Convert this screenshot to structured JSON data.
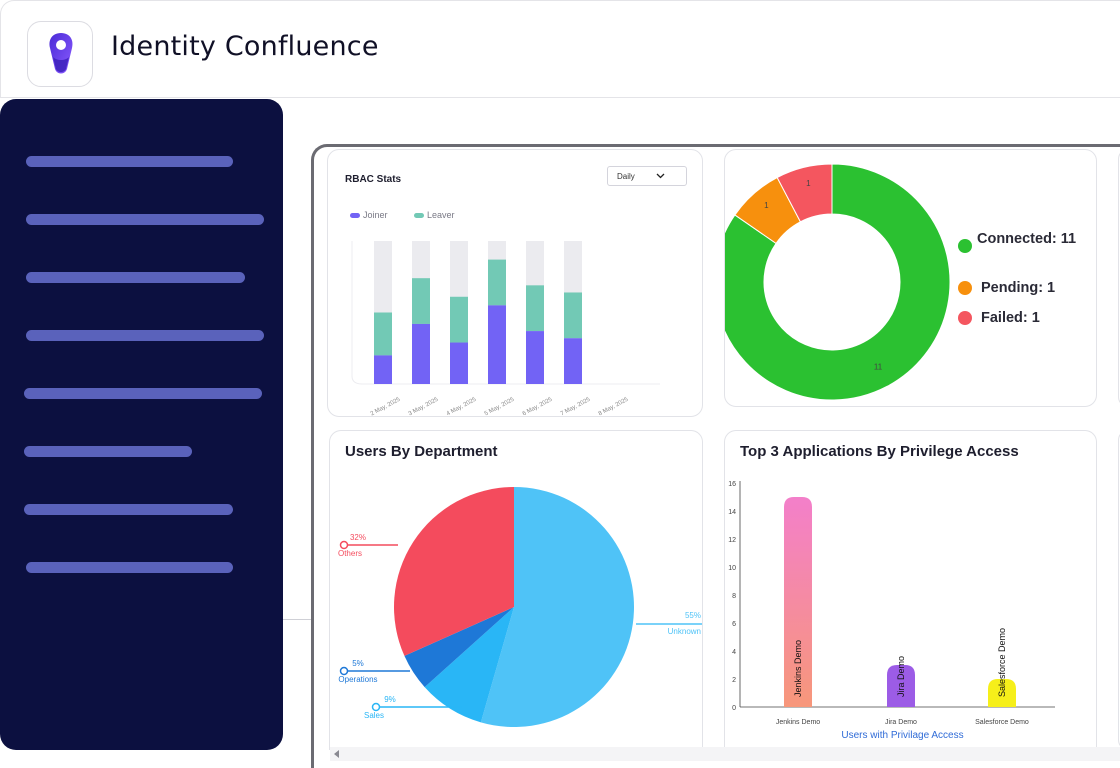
{
  "app": {
    "title": "Identity Confluence"
  },
  "sidebar": {
    "item_count": 8
  },
  "rbac": {
    "title": "RBAC Stats",
    "period": "Daily",
    "legend": [
      {
        "name": "Joiner",
        "color": "#7263f5"
      },
      {
        "name": "Leaver",
        "color": "#72c9b5"
      }
    ]
  },
  "connectors": {
    "legend": [
      {
        "label": "Connected: 11",
        "color": "#2bc131"
      },
      {
        "label": "Pending: 1",
        "color": "#f7900d"
      },
      {
        "label": "Failed: 1",
        "color": "#f4565f"
      }
    ]
  },
  "departments": {
    "title": "Users By Department"
  },
  "privilege": {
    "title": "Top 3 Applications By Privilege Access",
    "xlabel": "Users with Privilage Access"
  },
  "chart_data": [
    {
      "type": "bar",
      "title": "RBAC Stats",
      "categories": [
        "2 May, 2025",
        "3 May, 2025",
        "4 May, 2025",
        "5 May, 2025",
        "6 May, 2025",
        "7 May, 2025",
        "8 May, 2025"
      ],
      "series": [
        {
          "name": "Joiner",
          "values": [
            20,
            42,
            29,
            55,
            37,
            32,
            25
          ]
        },
        {
          "name": "Leaver",
          "values": [
            30,
            32,
            32,
            32,
            32,
            32,
            33
          ]
        }
      ],
      "ylim": [
        0,
        100
      ],
      "stacked": true,
      "legend": "top-left"
    },
    {
      "type": "pie",
      "donut": true,
      "labels": [
        "Connected",
        "Pending",
        "Failed"
      ],
      "values": [
        11,
        1,
        1
      ],
      "slice_labels": [
        "11",
        "1",
        "1"
      ],
      "colors": [
        "#2bc131",
        "#f7900d",
        "#f4565f"
      ],
      "legend": "right"
    },
    {
      "type": "pie",
      "title": "Users By Department",
      "labels": [
        "Unknown",
        "Sales",
        "Operations",
        "Others"
      ],
      "values": [
        55,
        9,
        5,
        32
      ],
      "percent_labels": [
        "55%",
        "9%",
        "5%",
        "32%"
      ],
      "colors": [
        "#4fc3f7",
        "#29b6f6",
        "#1e78d7",
        "#f44b5d"
      ]
    },
    {
      "type": "bar",
      "title": "Top 3 Applications By Privilege Access",
      "categories": [
        "Jenkins Demo",
        "Jira Demo",
        "Salesforce Demo"
      ],
      "values": [
        15,
        3,
        2
      ],
      "yticks": [
        0,
        2,
        4,
        6,
        8,
        10,
        12,
        14,
        16
      ],
      "ylim": [
        0,
        16
      ],
      "xlabel": "Users with Privilage Access",
      "colors": [
        "#f47fbd",
        "#9c5ce6",
        "#f6ef1a"
      ],
      "grid": false
    }
  ]
}
